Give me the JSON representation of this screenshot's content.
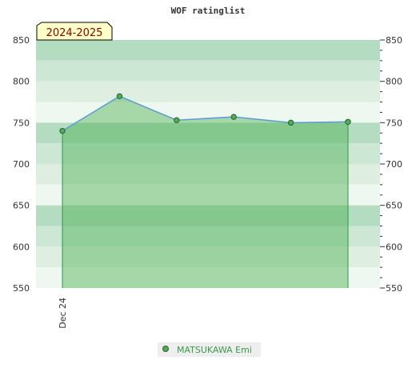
{
  "chart_data": {
    "type": "area",
    "title": "WOF ratinglist",
    "season_label": "2024-2025",
    "xlabel": "",
    "ylabel": "",
    "ylim": [
      550,
      850
    ],
    "yticks": [
      550,
      600,
      650,
      700,
      750,
      800,
      850
    ],
    "categories": [
      "Dec 24",
      "",
      "",
      "",
      "",
      ""
    ],
    "series": [
      {
        "name": "MATSUKAWA Emi",
        "values": [
          740,
          782,
          753,
          757,
          750,
          751
        ]
      }
    ],
    "grid": true,
    "legend_position": "bottom",
    "colors": {
      "line": "#5b9bd5",
      "marker": "#4caf50",
      "area": "#4caf50",
      "band_dark": "#b3dcc0",
      "band_mid": "#cde7d5",
      "band_light": "#deefe2",
      "band_lightest": "#eef7f0",
      "season_bg": "#ffffc8",
      "legend_bg": "#eeeeee"
    }
  }
}
